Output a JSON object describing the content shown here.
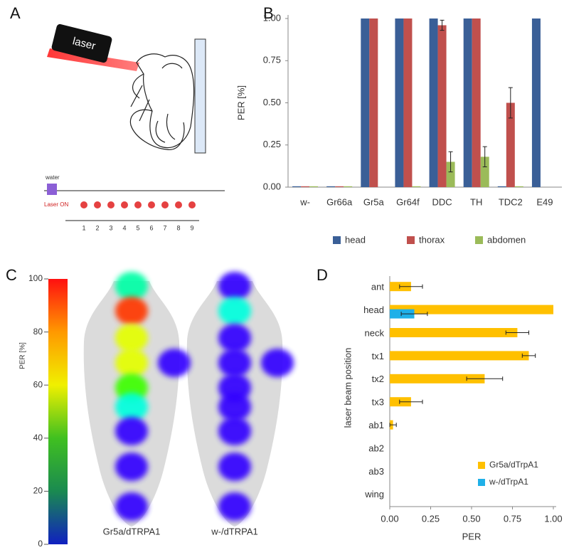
{
  "panel_labels": [
    "A",
    "B",
    "C",
    "D"
  ],
  "panel_a": {
    "laser": "laser",
    "water": "water",
    "laser_on": "Laser ON",
    "pulses": [
      "1",
      "2",
      "3",
      "4",
      "5",
      "6",
      "7",
      "8",
      "9"
    ]
  },
  "chart_data": [
    {
      "type": "bar",
      "ylabel": "PER [%]",
      "categories": [
        "w-",
        "Gr66a",
        "Gr5a",
        "Gr64f",
        "DDC",
        "TH",
        "TDC2",
        "E49"
      ],
      "series": [
        {
          "name": "head",
          "color": "#3a5f97",
          "values": [
            0.005,
            0.005,
            1,
            1,
            1,
            1,
            0.005,
            1
          ],
          "errors": [
            null,
            null,
            null,
            null,
            null,
            null,
            null,
            null
          ]
        },
        {
          "name": "thorax",
          "color": "#c0504d",
          "values": [
            0.005,
            0.005,
            1,
            1,
            0.96,
            1,
            0.5,
            0
          ],
          "errors": [
            null,
            null,
            null,
            null,
            0.03,
            null,
            0.09,
            null
          ]
        },
        {
          "name": "abdomen",
          "color": "#9bbb59",
          "values": [
            0.005,
            0.005,
            0,
            0.005,
            0.15,
            0.18,
            0.005,
            0
          ],
          "errors": [
            null,
            null,
            null,
            null,
            0.06,
            0.06,
            null,
            null
          ]
        }
      ],
      "ylim": [
        0,
        1
      ],
      "yticks": [
        {
          "value": 0,
          "label": "0.00"
        },
        {
          "value": 0.25,
          "label": "0.25"
        },
        {
          "value": 0.5,
          "label": "0.50"
        },
        {
          "value": 0.75,
          "label": "0.75"
        },
        {
          "value": 1,
          "label": "1.00"
        }
      ],
      "legend": "bottom"
    },
    {
      "type": "heatmap",
      "colorbar_label": "PER [%]",
      "clim": [
        0,
        100
      ],
      "cticks": [
        0,
        20,
        40,
        60,
        80,
        100
      ],
      "series": [
        {
          "name": "Gr5a/dTRPA1",
          "values": [
            40,
            95,
            75,
            75,
            60,
            35,
            5,
            5,
            5,
            5
          ]
        },
        {
          "name": "w-/dTRPA1",
          "values": [
            5,
            35,
            5,
            5,
            5,
            5,
            5,
            5,
            5,
            5
          ]
        }
      ]
    },
    {
      "type": "barh",
      "xlabel": "PER",
      "ylabel": "laser beam position",
      "categories": [
        "ant",
        "head",
        "neck",
        "tx1",
        "tx2",
        "tx3",
        "ab1",
        "ab2",
        "ab3",
        "wing"
      ],
      "series": [
        {
          "name": "Gr5a/dTrpA1",
          "color": "#ffc000",
          "values": [
            0.13,
            1,
            0.78,
            0.85,
            0.58,
            0.13,
            0.02,
            0,
            0,
            0
          ],
          "errors": [
            0.07,
            null,
            0.07,
            0.04,
            0.11,
            0.07,
            0.02,
            null,
            null,
            null
          ]
        },
        {
          "name": "w-/dTrpA1",
          "color": "#1fb0e8",
          "values": [
            0,
            0.15,
            0,
            0,
            0,
            0,
            0,
            0,
            0,
            0
          ],
          "errors": [
            null,
            0.08,
            null,
            null,
            null,
            null,
            null,
            null,
            null,
            null
          ]
        }
      ],
      "xlim": [
        0,
        1
      ],
      "xticks": [
        {
          "value": 0,
          "label": "0.00"
        },
        {
          "value": 0.25,
          "label": "0.25"
        },
        {
          "value": 0.5,
          "label": "0.50"
        },
        {
          "value": 0.75,
          "label": "0.75"
        },
        {
          "value": 1,
          "label": "1.00"
        }
      ],
      "legend": "lower right"
    }
  ]
}
